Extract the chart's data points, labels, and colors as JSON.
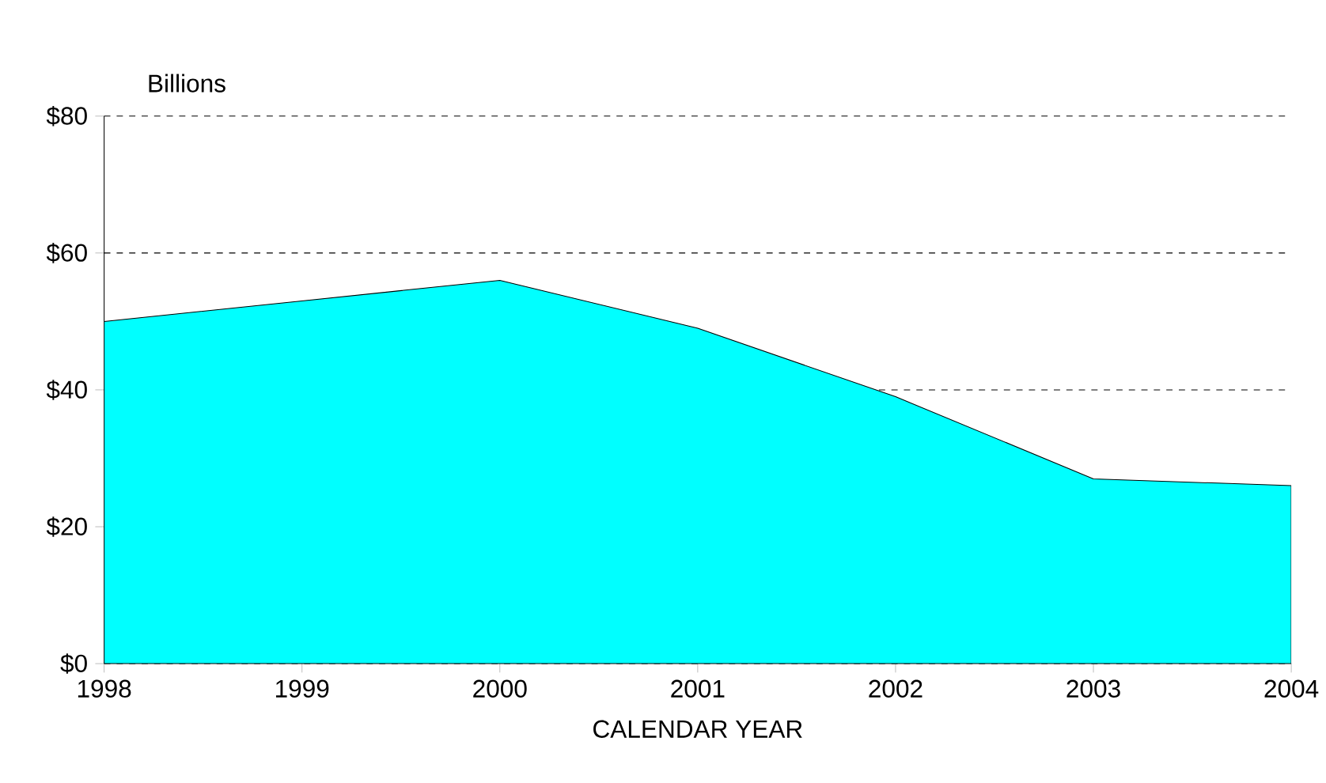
{
  "chart_data": {
    "type": "area",
    "xlabel": "CALENDAR YEAR",
    "ylabel": "Billions",
    "x": [
      1998,
      1999,
      2000,
      2001,
      2002,
      2003,
      2004
    ],
    "values": [
      50,
      53,
      56,
      49,
      39,
      27,
      26
    ],
    "color": "#00ffff",
    "xlim": [
      1998,
      2004
    ],
    "xticks": [
      1998,
      1999,
      2000,
      2001,
      2002,
      2003,
      2004
    ],
    "ylim": [
      0,
      80
    ],
    "yticks": [
      {
        "value": 0,
        "label": "$0"
      },
      {
        "value": 20,
        "label": "$20"
      },
      {
        "value": 40,
        "label": "$40"
      },
      {
        "value": 60,
        "label": "$60"
      },
      {
        "value": 80,
        "label": "$80"
      }
    ],
    "grid": "y"
  }
}
